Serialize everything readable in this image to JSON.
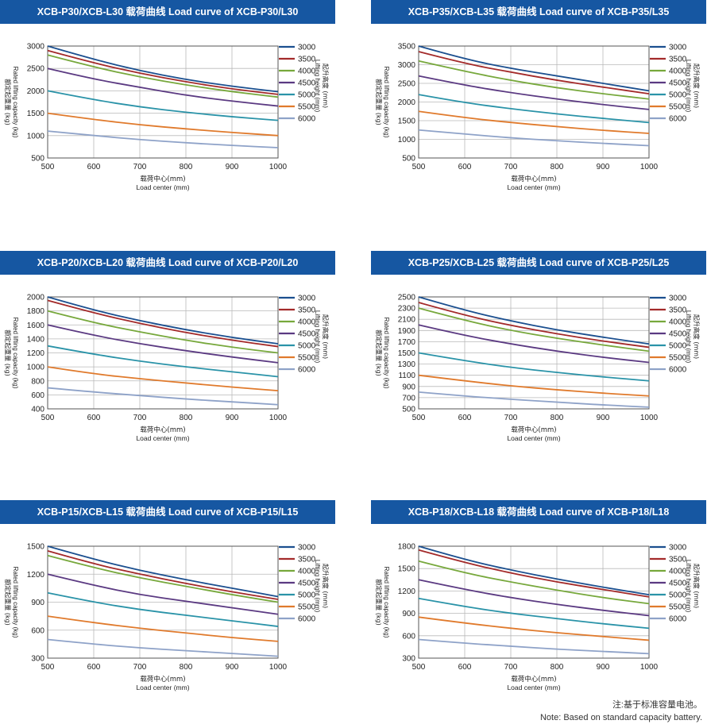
{
  "charts": [
    {
      "title": "XCB-P30/XCB-L30 载荷曲线   Load curve of XCB-P30/L30",
      "chart_data": {
        "type": "line",
        "x": [
          500,
          600,
          700,
          800,
          900,
          1000
        ],
        "ylim": [
          500,
          3000
        ],
        "yticks": [
          500,
          1000,
          1500,
          2000,
          2500,
          3000
        ],
        "xlabel": [
          "载荷中心(mm)",
          "Load center (mm)"
        ],
        "ylabel": [
          "额定起重量 (kg)",
          "Rated lifting capacity (kg)"
        ],
        "legend_title": [
          "起升高度 (mm)",
          "Lifting height (mm)"
        ],
        "series": [
          {
            "name": "3000",
            "color": "#1b4f8f",
            "values": [
              3000,
              2700,
              2450,
              2250,
              2100,
              1980
            ]
          },
          {
            "name": "3500",
            "color": "#a32a2a",
            "values": [
              2900,
              2620,
              2390,
              2200,
              2040,
              1920
            ]
          },
          {
            "name": "4000",
            "color": "#77a83c",
            "values": [
              2800,
              2530,
              2310,
              2130,
              1980,
              1860
            ]
          },
          {
            "name": "4500",
            "color": "#5b3a82",
            "values": [
              2500,
              2260,
              2080,
              1900,
              1770,
              1660
            ]
          },
          {
            "name": "5000",
            "color": "#2a93a8",
            "values": [
              2000,
              1800,
              1640,
              1520,
              1420,
              1340
            ]
          },
          {
            "name": "5500",
            "color": "#e07a2c",
            "values": [
              1500,
              1360,
              1240,
              1150,
              1070,
              1000
            ]
          },
          {
            "name": "6000",
            "color": "#8ea2c8",
            "values": [
              1100,
              1000,
              910,
              840,
              780,
              730
            ]
          }
        ]
      }
    },
    {
      "title": "XCB-P35/XCB-L35 载荷曲线   Load curve of XCB-P35/L35",
      "chart_data": {
        "type": "line",
        "x": [
          500,
          600,
          700,
          800,
          900,
          1000
        ],
        "ylim": [
          500,
          3500
        ],
        "yticks": [
          500,
          1000,
          1500,
          2000,
          2500,
          3000,
          3500
        ],
        "xlabel": [
          "载荷中心(mm)",
          "Load center (mm)"
        ],
        "ylabel": [
          "额定起重量 (kg)",
          "Rated lifting capacity (kg)"
        ],
        "legend_title": [
          "起升高度 (mm)",
          "Lifting height (mm)"
        ],
        "series": [
          {
            "name": "3000",
            "color": "#1b4f8f",
            "values": [
              3500,
              3150,
              2900,
              2700,
              2500,
              2300
            ]
          },
          {
            "name": "3500",
            "color": "#a32a2a",
            "values": [
              3350,
              3030,
              2800,
              2580,
              2400,
              2220
            ]
          },
          {
            "name": "4000",
            "color": "#77a83c",
            "values": [
              3100,
              2820,
              2580,
              2380,
              2220,
              2080
            ]
          },
          {
            "name": "4500",
            "color": "#5b3a82",
            "values": [
              2700,
              2450,
              2250,
              2080,
              1930,
              1800
            ]
          },
          {
            "name": "5000",
            "color": "#2a93a8",
            "values": [
              2200,
              1980,
              1820,
              1680,
              1560,
              1450
            ]
          },
          {
            "name": "5500",
            "color": "#e07a2c",
            "values": [
              1750,
              1580,
              1450,
              1340,
              1240,
              1160
            ]
          },
          {
            "name": "6000",
            "color": "#8ea2c8",
            "values": [
              1250,
              1140,
              1040,
              960,
              890,
              830
            ]
          }
        ]
      }
    },
    {
      "title": "XCB-P20/XCB-L20 载荷曲线   Load curve of XCB-P20/L20",
      "chart_data": {
        "type": "line",
        "x": [
          500,
          600,
          700,
          800,
          900,
          1000
        ],
        "ylim": [
          400,
          2000
        ],
        "yticks": [
          400,
          600,
          800,
          1000,
          1200,
          1400,
          1600,
          1800,
          2000
        ],
        "xlabel": [
          "载荷中心(mm)",
          "Load center (mm)"
        ],
        "ylabel": [
          "额定起重量 (kg)",
          "Rated lifting capacity (kg)"
        ],
        "legend_title": [
          "起升高度 (mm)",
          "Lifting height (mm)"
        ],
        "series": [
          {
            "name": "3000",
            "color": "#1b4f8f",
            "values": [
              2000,
              1810,
              1660,
              1530,
              1420,
              1330
            ]
          },
          {
            "name": "3500",
            "color": "#a32a2a",
            "values": [
              1950,
              1770,
              1620,
              1490,
              1380,
              1290
            ]
          },
          {
            "name": "4000",
            "color": "#77a83c",
            "values": [
              1800,
              1630,
              1500,
              1380,
              1280,
              1200
            ]
          },
          {
            "name": "4500",
            "color": "#5b3a82",
            "values": [
              1600,
              1450,
              1330,
              1230,
              1140,
              1060
            ]
          },
          {
            "name": "5000",
            "color": "#2a93a8",
            "values": [
              1300,
              1180,
              1080,
              1000,
              930,
              860
            ]
          },
          {
            "name": "5500",
            "color": "#e07a2c",
            "values": [
              1000,
              900,
              830,
              770,
              710,
              660
            ]
          },
          {
            "name": "6000",
            "color": "#8ea2c8",
            "values": [
              700,
              640,
              590,
              540,
              500,
              460
            ]
          }
        ]
      }
    },
    {
      "title": "XCB-P25/XCB-L25 载荷曲线   Load curve of XCB-P25/L25",
      "chart_data": {
        "type": "line",
        "x": [
          500,
          600,
          700,
          800,
          900,
          1000
        ],
        "ylim": [
          500,
          2500
        ],
        "yticks": [
          500,
          700,
          900,
          1100,
          1300,
          1500,
          1700,
          1900,
          2100,
          2300,
          2500
        ],
        "xlabel": [
          "载荷中心(mm)",
          "Load center (mm)"
        ],
        "ylabel": [
          "额定起重量 (kg)",
          "Rated lifting capacity (kg)"
        ],
        "legend_title": [
          "起升高度 (mm)",
          "Lifting height (mm)"
        ],
        "series": [
          {
            "name": "3000",
            "color": "#1b4f8f",
            "values": [
              2500,
              2260,
              2070,
              1910,
              1780,
              1660
            ]
          },
          {
            "name": "3500",
            "color": "#a32a2a",
            "values": [
              2400,
              2170,
              1990,
              1840,
              1710,
              1600
            ]
          },
          {
            "name": "4000",
            "color": "#77a83c",
            "values": [
              2300,
              2080,
              1900,
              1760,
              1640,
              1530
            ]
          },
          {
            "name": "4500",
            "color": "#5b3a82",
            "values": [
              2000,
              1810,
              1660,
              1530,
              1420,
              1330
            ]
          },
          {
            "name": "5000",
            "color": "#2a93a8",
            "values": [
              1500,
              1360,
              1240,
              1150,
              1070,
              1000
            ]
          },
          {
            "name": "5500",
            "color": "#e07a2c",
            "values": [
              1100,
              1000,
              910,
              840,
              780,
              730
            ]
          },
          {
            "name": "6000",
            "color": "#8ea2c8",
            "values": [
              800,
              730,
              670,
              620,
              570,
              530
            ]
          }
        ]
      }
    },
    {
      "title": "XCB-P15/XCB-L15 载荷曲线   Load curve of XCB-P15/L15",
      "chart_data": {
        "type": "line",
        "x": [
          500,
          600,
          700,
          800,
          900,
          1000
        ],
        "ylim": [
          300,
          1500
        ],
        "yticks": [
          300,
          600,
          900,
          1200,
          1500
        ],
        "xlabel": [
          "载荷中心(mm)",
          "Load center (mm)"
        ],
        "ylabel": [
          "额定起重量 (kg)",
          "Rated lifting capacity (kg)"
        ],
        "legend_title": [
          "起升高度 (mm)",
          "Lifting height (mm)"
        ],
        "series": [
          {
            "name": "3000",
            "color": "#1b4f8f",
            "values": [
              1500,
              1360,
              1240,
              1140,
              1050,
              960
            ]
          },
          {
            "name": "3500",
            "color": "#a32a2a",
            "values": [
              1450,
              1310,
              1200,
              1100,
              1010,
              930
            ]
          },
          {
            "name": "4000",
            "color": "#77a83c",
            "values": [
              1400,
              1270,
              1160,
              1070,
              980,
              900
            ]
          },
          {
            "name": "4500",
            "color": "#5b3a82",
            "values": [
              1200,
              1080,
              980,
              910,
              840,
              770
            ]
          },
          {
            "name": "5000",
            "color": "#2a93a8",
            "values": [
              1000,
              900,
              820,
              760,
              700,
              640
            ]
          },
          {
            "name": "5500",
            "color": "#e07a2c",
            "values": [
              750,
              680,
              620,
              570,
              520,
              480
            ]
          },
          {
            "name": "6000",
            "color": "#8ea2c8",
            "values": [
              500,
              450,
              410,
              380,
              350,
              320
            ]
          }
        ]
      }
    },
    {
      "title": "XCB-P18/XCB-L18 载荷曲线   Load curve of XCB-P18/L18",
      "chart_data": {
        "type": "line",
        "x": [
          500,
          600,
          700,
          800,
          900,
          1000
        ],
        "ylim": [
          300,
          1800
        ],
        "yticks": [
          300,
          600,
          900,
          1200,
          1500,
          1800
        ],
        "xlabel": [
          "载荷中心(mm)",
          "Load center (mm)"
        ],
        "ylabel": [
          "额定起重量 (kg)",
          "Rated lifting capacity (kg)"
        ],
        "legend_title": [
          "起升高度 (mm)",
          "Lifting height (mm)"
        ],
        "series": [
          {
            "name": "3000",
            "color": "#1b4f8f",
            "values": [
              1800,
              1620,
              1480,
              1360,
              1250,
              1150
            ]
          },
          {
            "name": "3500",
            "color": "#a32a2a",
            "values": [
              1750,
              1580,
              1440,
              1320,
              1220,
              1120
            ]
          },
          {
            "name": "4000",
            "color": "#77a83c",
            "values": [
              1600,
              1440,
              1320,
              1210,
              1110,
              1030
            ]
          },
          {
            "name": "4500",
            "color": "#5b3a82",
            "values": [
              1350,
              1220,
              1110,
              1020,
              940,
              870
            ]
          },
          {
            "name": "5000",
            "color": "#2a93a8",
            "values": [
              1100,
              990,
              900,
              830,
              760,
              700
            ]
          },
          {
            "name": "5500",
            "color": "#e07a2c",
            "values": [
              850,
              770,
              700,
              640,
              590,
              540
            ]
          },
          {
            "name": "6000",
            "color": "#8ea2c8",
            "values": [
              550,
              500,
              460,
              420,
              390,
              360
            ]
          }
        ]
      }
    }
  ],
  "footnote": {
    "zh": "注:基于标准容量电池。",
    "en": "Note: Based on standard capacity battery."
  }
}
